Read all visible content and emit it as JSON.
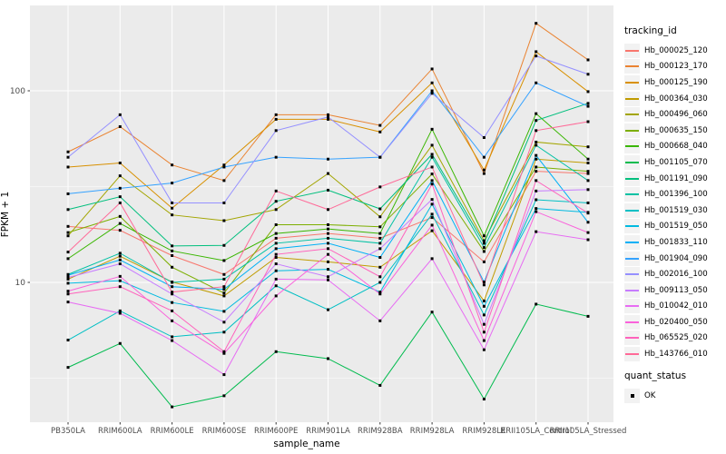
{
  "panel": {
    "bg": "#EBEBEB",
    "grid": "#FFFFFF",
    "tick_color": "#333333",
    "tick_label_color": "#4D4D4D"
  },
  "chart_data": {
    "type": "line",
    "title": "",
    "xlabel": "sample_name",
    "ylabel": "FPKM + 1",
    "y_scale": "log10",
    "y_ticks": [
      10,
      100
    ],
    "y_minor_ticks": [
      3.1623,
      31.623
    ],
    "ylim": [
      1.86,
      278
    ],
    "grid": "on",
    "legend_position": "right",
    "point_shape": "filled-square",
    "point_color": "#000000",
    "categories": [
      "PB350LA",
      "RRIM600LA",
      "RRIM600LE",
      "RRIM600SE",
      "RRIM600PE",
      "RRIM901LA",
      "RRIM928BA",
      "RRIM928LA",
      "RRIM928LE",
      "RRII105LA_Control",
      "RRII105LA_Stressed"
    ],
    "legend": {
      "tracking_title": "tracking_id",
      "quant_title": "quant_status",
      "quant_value": "OK"
    },
    "series": [
      {
        "name": "Hb_000025_120",
        "color": "#F8766D",
        "values": [
          19.6,
          18.7,
          13.8,
          11.0,
          17.0,
          18.0,
          17.0,
          21.8,
          12.8,
          38.0,
          37.0
        ]
      },
      {
        "name": "Hb_000123_170",
        "color": "#EA8331",
        "values": [
          48.0,
          65.0,
          41.0,
          34.0,
          75.0,
          75.0,
          66.0,
          130.0,
          37.0,
          225.0,
          145.0
        ]
      },
      {
        "name": "Hb_000125_190",
        "color": "#D89000",
        "values": [
          40.0,
          42.0,
          24.4,
          41.0,
          71.0,
          71.0,
          61.0,
          110.0,
          38.6,
          160.0,
          99.0
        ]
      },
      {
        "name": "Hb_000364_030",
        "color": "#C09B00",
        "values": [
          10.4,
          13.7,
          10.05,
          8.5,
          13.5,
          12.8,
          12.0,
          18.6,
          8.0,
          44.0,
          42.0
        ]
      },
      {
        "name": "Hb_000496_060",
        "color": "#A3A500",
        "values": [
          17.5,
          36.0,
          22.5,
          21.0,
          24.0,
          37.0,
          22.0,
          52.0,
          16.5,
          54.0,
          51.0
        ]
      },
      {
        "name": "Hb_000635_150",
        "color": "#7CAE00",
        "values": [
          18.2,
          22.1,
          12.0,
          8.8,
          20.0,
          20.0,
          19.5,
          36.8,
          14.5,
          40.0,
          38.0
        ]
      },
      {
        "name": "Hb_000668_040",
        "color": "#39B600",
        "values": [
          13.3,
          20.3,
          14.6,
          13.0,
          18.0,
          19.0,
          18.0,
          63.0,
          17.5,
          76.0,
          44.0
        ]
      },
      {
        "name": "Hb_001105_070",
        "color": "#00BB4E",
        "values": [
          3.6,
          4.8,
          2.24,
          2.56,
          4.35,
          4.0,
          2.9,
          7.0,
          2.46,
          7.7,
          6.65
        ]
      },
      {
        "name": "Hb_001191_090",
        "color": "#00BF7D",
        "values": [
          24.0,
          28.0,
          15.5,
          15.6,
          26.5,
          30.3,
          24.2,
          46.6,
          16.0,
          70.0,
          86.0
        ]
      },
      {
        "name": "Hb_001396_100",
        "color": "#00C1A3",
        "values": [
          11.0,
          14.2,
          10.0,
          10.4,
          16.0,
          17.0,
          16.0,
          45.0,
          15.2,
          52.0,
          34.0
        ]
      },
      {
        "name": "Hb_001519_030",
        "color": "#00BFC4",
        "values": [
          5.0,
          7.1,
          5.2,
          5.5,
          9.6,
          7.2,
          10.0,
          22.7,
          6.76,
          27.0,
          26.0
        ]
      },
      {
        "name": "Hb_001519_050",
        "color": "#00BAE0",
        "values": [
          9.9,
          10.2,
          7.85,
          7.06,
          11.5,
          11.7,
          8.9,
          25.6,
          7.5,
          24.3,
          23.2
        ]
      },
      {
        "name": "Hb_001833_110",
        "color": "#00B0F6",
        "values": [
          10.9,
          13.1,
          9.5,
          9.2,
          15.0,
          16.0,
          13.5,
          34.0,
          10.05,
          46.0,
          20.6
        ]
      },
      {
        "name": "Hb_001904_090",
        "color": "#35A2FF",
        "values": [
          29.0,
          31.0,
          33.0,
          40.0,
          45.0,
          44.0,
          45.0,
          100.0,
          45.0,
          110.0,
          83.0
        ]
      },
      {
        "name": "Hb_002016_100",
        "color": "#9590FF",
        "values": [
          45.0,
          75.0,
          26.0,
          26.0,
          62.0,
          73.0,
          45.0,
          97.0,
          57.0,
          152.0,
          122.0
        ]
      },
      {
        "name": "Hb_009113_050",
        "color": "#C77CFF",
        "values": [
          10.6,
          12.5,
          8.7,
          6.2,
          12.5,
          10.7,
          15.0,
          27.1,
          6.04,
          30.0,
          30.5
        ]
      },
      {
        "name": "Hb_010042_010",
        "color": "#E76BF3",
        "values": [
          7.9,
          6.9,
          4.97,
          3.3,
          10.4,
          10.3,
          6.3,
          13.3,
          4.45,
          18.4,
          16.7
        ]
      },
      {
        "name": "Hb_020400_050",
        "color": "#FA62DB",
        "values": [
          9.0,
          10.75,
          6.3,
          4.26,
          8.5,
          14.0,
          8.7,
          19.9,
          4.97,
          23.4,
          18.2
        ]
      },
      {
        "name": "Hb_065525_020",
        "color": "#FF62BC",
        "values": [
          8.7,
          9.5,
          7.1,
          4.35,
          14.0,
          15.0,
          10.7,
          32.6,
          5.5,
          34.0,
          23.0
        ]
      },
      {
        "name": "Hb_143766_010",
        "color": "#FF6A98",
        "values": [
          14.4,
          26.0,
          8.9,
          9.5,
          30.0,
          24.0,
          31.5,
          40.0,
          9.7,
          62.0,
          69.0
        ]
      }
    ]
  }
}
